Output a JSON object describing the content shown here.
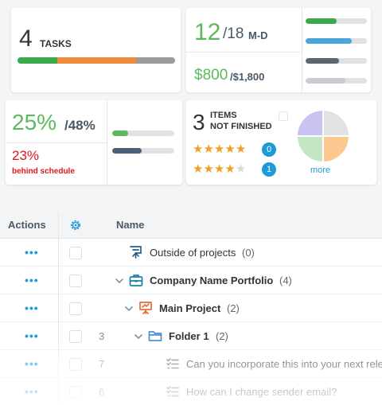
{
  "tasks_card": {
    "count": "4",
    "label": "TASKS",
    "segments": [
      {
        "color": "#3aaa4a",
        "fraction": 0.25
      },
      {
        "color": "#f08a3c",
        "fraction": 0.5
      },
      {
        "color": "#9b9b9b",
        "fraction": 0.25
      }
    ]
  },
  "mandays_card": {
    "value": "12",
    "total": "/18",
    "unit": "M-D",
    "money": "$800",
    "money_total": "/$1,800",
    "bars": [
      {
        "color": "#3aaa4a",
        "fraction": 0.5
      },
      {
        "color": "#4aa6d9",
        "fraction": 0.75
      },
      {
        "color": "#5d6670",
        "fraction": 0.55
      },
      {
        "color": "#c8cbcf",
        "fraction": 0.65
      }
    ]
  },
  "progress_card": {
    "percent": "25%",
    "percent_total": "/48%",
    "behind": "23%",
    "behind_label": "behind schedule",
    "bars": [
      {
        "color": "#5cb85c",
        "fraction": 0.25
      },
      {
        "color": "#4a6278",
        "fraction": 0.48
      }
    ]
  },
  "items_card": {
    "count": "3",
    "label_line1": "ITEMS",
    "label_line2": "NOT FINISHED",
    "ratings": [
      {
        "stars": 5,
        "of": 5,
        "count": "0"
      },
      {
        "stars": 4,
        "of": 5,
        "count": "1"
      }
    ],
    "pie_colors": [
      "#c9c3f2",
      "#e2e2e2",
      "#c4e6c2",
      "#fcc890"
    ],
    "more_label": "more"
  },
  "table": {
    "headers": {
      "actions": "Actions",
      "name": "Name"
    },
    "rows": [
      {
        "number": "",
        "name": "Outside of projects",
        "count": "(0)",
        "bold": false,
        "icon": "project-board-icon",
        "icon_color": "#1e5f8f",
        "depth": 0,
        "expanded": false
      },
      {
        "number": "",
        "name": "Company Name  Portfolio",
        "count": "(4)",
        "bold": true,
        "icon": "briefcase-icon",
        "icon_color": "#1e7fa8",
        "depth": 0,
        "expanded": true
      },
      {
        "number": "",
        "name": "Main Project",
        "count": "(2)",
        "bold": true,
        "icon": "presentation-icon",
        "icon_color": "#e1703a",
        "depth": 1,
        "expanded": true
      },
      {
        "number": "3",
        "name": "Folder 1",
        "count": "(2)",
        "bold": true,
        "icon": "folder-icon",
        "icon_color": "#4d8fd1",
        "depth": 2,
        "expanded": true
      },
      {
        "number": "7",
        "name": "Can you incorporate this into your next rele",
        "count": "",
        "bold": false,
        "icon": "task-list-icon",
        "icon_color": "#777777",
        "depth": 3,
        "expanded": false
      },
      {
        "number": "6",
        "name": "How can I change sender email?",
        "count": "",
        "bold": false,
        "icon": "task-list-icon",
        "icon_color": "#777777",
        "depth": 3,
        "expanded": false
      }
    ]
  }
}
